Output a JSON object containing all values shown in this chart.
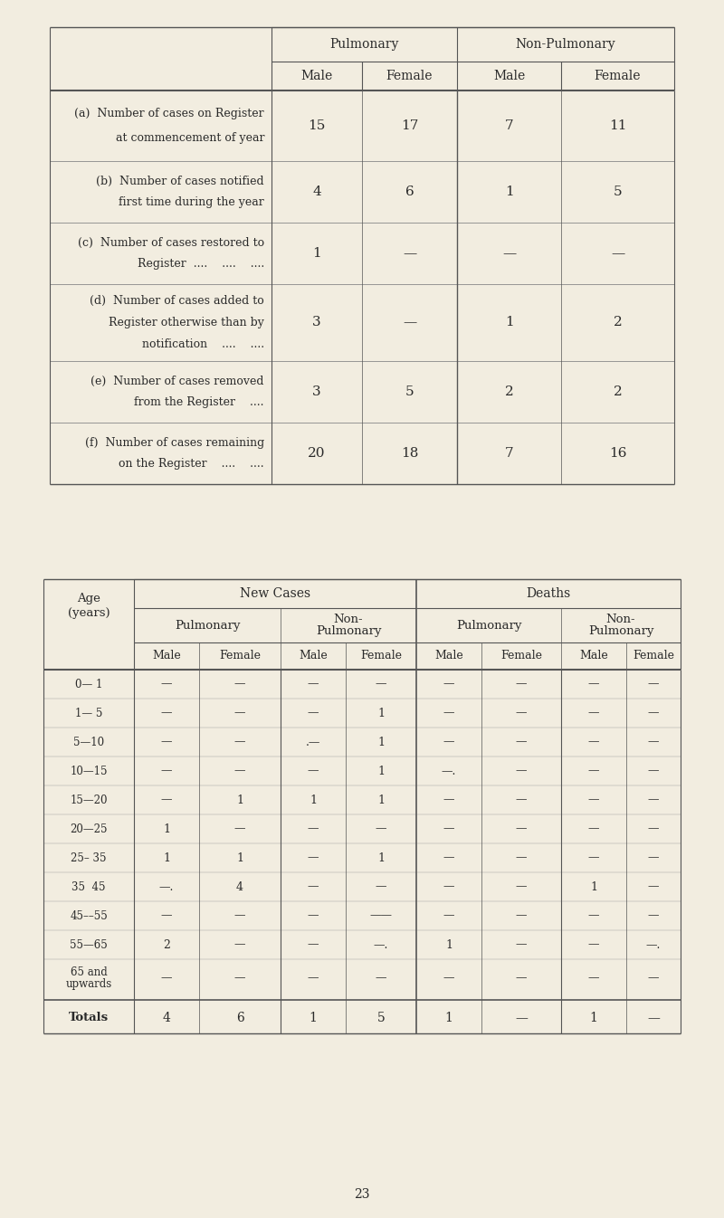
{
  "bg_color": "#f2ede0",
  "text_color": "#2a2a2a",
  "line_color": "#555555",
  "table1": {
    "rows": [
      {
        "lines": [
          "(a)  Number of cases on Register",
          "      at commencement of year"
        ],
        "values": [
          "15",
          "17",
          "7",
          "11"
        ]
      },
      {
        "lines": [
          "(b)  Number of cases notified",
          "      first time during the year"
        ],
        "values": [
          "4",
          "6",
          "1",
          "5"
        ]
      },
      {
        "lines": [
          "(c)  Number of cases restored to",
          "      Register  ....    ....    ...."
        ],
        "values": [
          "1",
          "—",
          "—",
          "—"
        ]
      },
      {
        "lines": [
          "(d)  Number of cases added to",
          "      Register otherwise than by",
          "      notification    ....    ...."
        ],
        "values": [
          "3",
          "—",
          "1",
          "2"
        ]
      },
      {
        "lines": [
          "(e)  Number of cases removed",
          "      from the Register    ...."
        ],
        "values": [
          "3",
          "5",
          "2",
          "2"
        ]
      },
      {
        "lines": [
          "(f)  Number of cases remaining",
          "      on the Register    ....    ...."
        ],
        "values": [
          "20",
          "18",
          "7",
          "16"
        ]
      }
    ]
  },
  "table2": {
    "age_groups": [
      "0— 1",
      "1— 5",
      "5—10",
      "10—15",
      "15—20",
      "20—25",
      "25– 35",
      "35  45",
      "45––55",
      "55—65",
      "65 and\nupwards"
    ],
    "new_cases_pulm_male": [
      "—",
      "—",
      "—",
      "—",
      "—",
      "1",
      "1",
      "—.",
      "—",
      "2",
      "—"
    ],
    "new_cases_pulm_female": [
      "—",
      "—",
      "—",
      "—",
      "1",
      "—",
      "1",
      "4",
      "—",
      "—",
      "—"
    ],
    "new_cases_nonp_male": [
      "—",
      "—",
      ".—",
      "—",
      "1",
      "—",
      "—",
      "—",
      "—",
      "—",
      "—"
    ],
    "new_cases_nonp_female": [
      "—",
      "1",
      "1",
      "1",
      "1",
      "—",
      "1",
      "—",
      "——",
      "—.",
      "—"
    ],
    "deaths_pulm_male": [
      "—",
      "—",
      "—",
      "—.",
      "—",
      "—",
      "—",
      "—",
      "—",
      "1",
      "—"
    ],
    "deaths_pulm_female": [
      "—",
      "—",
      "—",
      "—",
      "—",
      "—",
      "—",
      "—",
      "—",
      "—",
      "—"
    ],
    "deaths_nonp_male": [
      "—",
      "—",
      "—",
      "—",
      "—",
      "—",
      "—",
      "1",
      "—",
      "—",
      "—"
    ],
    "deaths_nonp_female": [
      "—",
      "—",
      "—",
      "—",
      "—",
      "—",
      "—",
      "—",
      "—",
      "—.",
      "—"
    ],
    "totals": [
      "4",
      "6",
      "1",
      "5",
      "1",
      "—",
      "1",
      "—"
    ]
  },
  "page_number": "23"
}
